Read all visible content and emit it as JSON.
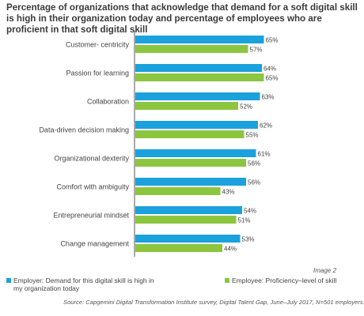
{
  "chart_data": {
    "type": "bar",
    "title": "Percentage of organizations that acknowledge that demand for a soft digital skill is high in their organization today and percentage of employees who are proficient in that soft digital skill",
    "categories": [
      "Customer- centricity",
      "Passion for learning",
      "Collaboration",
      "Data-driven decision making",
      "Organizational dexterity",
      "Comfort with ambiguity",
      "Entrepreneurial mindset",
      "Change management"
    ],
    "series": [
      {
        "name": "Employer: Demand for this digital skill is high in my organization today",
        "color": "#1ba1dc",
        "values": [
          65,
          64,
          63,
          62,
          61,
          56,
          54,
          53
        ],
        "labels": [
          "65%",
          "64%",
          "63%",
          "62%",
          "61%",
          "56%",
          "54%",
          "53%"
        ]
      },
      {
        "name": "Employee: Proficiency–level of skill",
        "color": "#8cc63f",
        "values": [
          57,
          65,
          52,
          55,
          56,
          43,
          51,
          44
        ],
        "labels": [
          "57%",
          "65%",
          "52%",
          "55%",
          "56%",
          "43%",
          "51%",
          "44%"
        ]
      }
    ],
    "orientation": "horizontal",
    "legend_position": "bottom",
    "grid": false
  },
  "image_tag": "Image 2",
  "source": "Source: Capgemini Digital Transformation Institute survey, Digital Talent Gap, June–July 2017, N=501 employers."
}
